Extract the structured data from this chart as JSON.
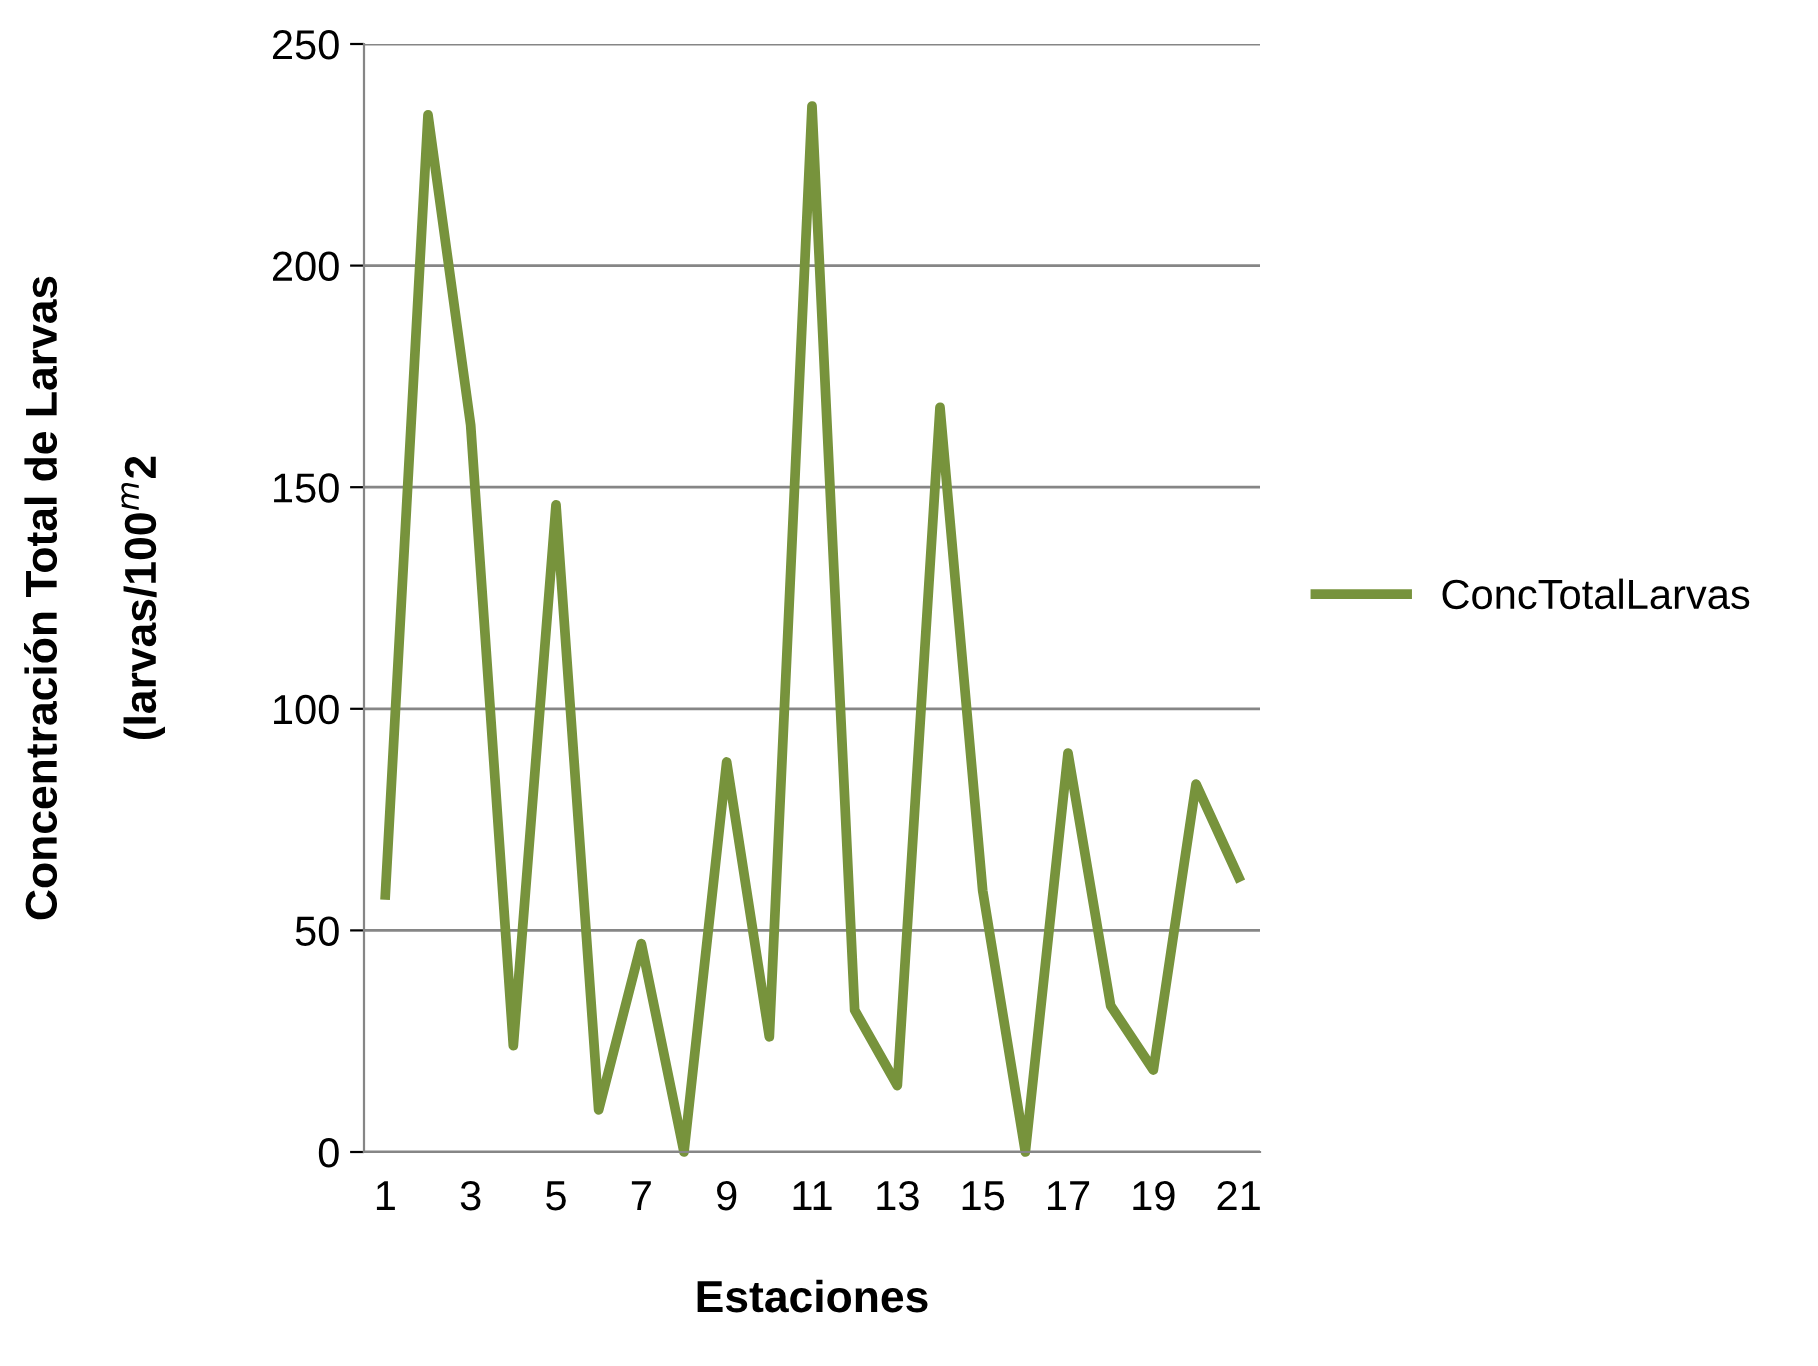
{
  "chart_data": {
    "type": "line",
    "xlabel": "Estaciones",
    "ylabel": "Concentración Total de Larvas\n(larvas/100$^{m}$2",
    "categories": [
      "1",
      null,
      "3",
      null,
      "5",
      null,
      "7",
      null,
      "9",
      null,
      "11",
      null,
      "13",
      null,
      "15",
      null,
      "17",
      null,
      "19",
      null,
      "21"
    ],
    "series": [
      {
        "name": "ConcTotalLarvas",
        "color": "#77933c",
        "values": [
          58,
          234,
          164,
          24,
          146,
          9.5,
          47,
          0,
          88,
          26,
          236,
          32,
          15,
          168,
          59,
          0,
          90,
          33,
          18.5,
          83,
          62
        ]
      }
    ],
    "ylim": [
      0,
      250
    ],
    "yticks": [
      0,
      50,
      100,
      150,
      200,
      250
    ],
    "grid": "y",
    "legend": "right",
    "marker": "none",
    "line_style": "solid"
  }
}
